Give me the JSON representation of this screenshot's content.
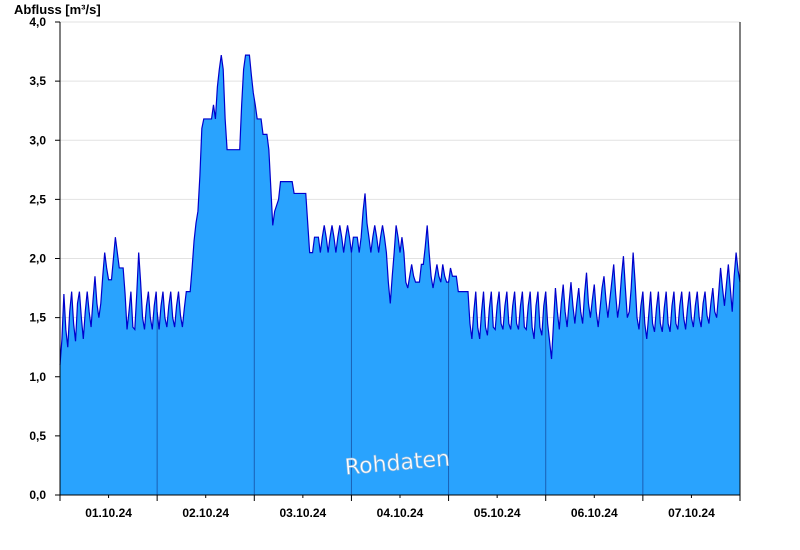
{
  "chart_data": {
    "type": "area",
    "ylabel": "Abfluss [m³/s]",
    "ylim": [
      0,
      4.0
    ],
    "yticks": [
      "0,0",
      "0,5",
      "1,0",
      "1,5",
      "2,0",
      "2,5",
      "3,0",
      "3,5",
      "4,0"
    ],
    "xticks": [
      "01.10.24",
      "02.10.24",
      "03.10.24",
      "04.10.24",
      "05.10.24",
      "06.10.24",
      "07.10.24"
    ],
    "xlim_days": [
      0,
      7
    ],
    "grid": "horizontal",
    "watermark": "Rohdaten",
    "colors": {
      "fill": "#29a3fe",
      "line": "#0000cc",
      "grid": "#e2e2e2",
      "axis": "#000000"
    },
    "series": [
      {
        "points": [
          [
            0.0,
            1.1
          ],
          [
            0.02,
            1.32
          ],
          [
            0.04,
            1.7
          ],
          [
            0.06,
            1.4
          ],
          [
            0.08,
            1.25
          ],
          [
            0.1,
            1.55
          ],
          [
            0.12,
            1.72
          ],
          [
            0.14,
            1.45
          ],
          [
            0.16,
            1.3
          ],
          [
            0.18,
            1.62
          ],
          [
            0.2,
            1.72
          ],
          [
            0.22,
            1.5
          ],
          [
            0.24,
            1.32
          ],
          [
            0.26,
            1.55
          ],
          [
            0.28,
            1.72
          ],
          [
            0.3,
            1.55
          ],
          [
            0.32,
            1.42
          ],
          [
            0.34,
            1.65
          ],
          [
            0.36,
            1.85
          ],
          [
            0.38,
            1.62
          ],
          [
            0.4,
            1.5
          ],
          [
            0.42,
            1.62
          ],
          [
            0.44,
            1.85
          ],
          [
            0.46,
            2.05
          ],
          [
            0.48,
            1.92
          ],
          [
            0.5,
            1.82
          ],
          [
            0.53,
            1.82
          ],
          [
            0.55,
            2.0
          ],
          [
            0.57,
            2.18
          ],
          [
            0.59,
            2.05
          ],
          [
            0.61,
            1.92
          ],
          [
            0.65,
            1.92
          ],
          [
            0.67,
            1.7
          ],
          [
            0.69,
            1.4
          ],
          [
            0.71,
            1.55
          ],
          [
            0.73,
            1.72
          ],
          [
            0.75,
            1.42
          ],
          [
            0.77,
            1.4
          ],
          [
            0.79,
            1.7
          ],
          [
            0.81,
            2.05
          ],
          [
            0.83,
            1.8
          ],
          [
            0.85,
            1.5
          ],
          [
            0.87,
            1.4
          ],
          [
            0.89,
            1.6
          ],
          [
            0.91,
            1.72
          ],
          [
            0.93,
            1.5
          ],
          [
            0.95,
            1.4
          ],
          [
            0.97,
            1.6
          ],
          [
            0.99,
            1.72
          ],
          [
            1.0,
            1.55
          ],
          [
            1.02,
            1.4
          ],
          [
            1.04,
            1.6
          ],
          [
            1.06,
            1.72
          ],
          [
            1.08,
            1.5
          ],
          [
            1.1,
            1.42
          ],
          [
            1.12,
            1.6
          ],
          [
            1.14,
            1.72
          ],
          [
            1.16,
            1.5
          ],
          [
            1.18,
            1.42
          ],
          [
            1.2,
            1.6
          ],
          [
            1.22,
            1.72
          ],
          [
            1.24,
            1.52
          ],
          [
            1.26,
            1.42
          ],
          [
            1.28,
            1.58
          ],
          [
            1.3,
            1.72
          ],
          [
            1.34,
            1.72
          ],
          [
            1.36,
            1.92
          ],
          [
            1.38,
            2.15
          ],
          [
            1.4,
            2.3
          ],
          [
            1.42,
            2.4
          ],
          [
            1.44,
            2.7
          ],
          [
            1.46,
            3.1
          ],
          [
            1.48,
            3.18
          ],
          [
            1.56,
            3.18
          ],
          [
            1.58,
            3.3
          ],
          [
            1.6,
            3.18
          ],
          [
            1.62,
            3.45
          ],
          [
            1.64,
            3.6
          ],
          [
            1.66,
            3.72
          ],
          [
            1.68,
            3.6
          ],
          [
            1.7,
            3.18
          ],
          [
            1.72,
            2.92
          ],
          [
            1.85,
            2.92
          ],
          [
            1.87,
            3.3
          ],
          [
            1.89,
            3.6
          ],
          [
            1.91,
            3.72
          ],
          [
            1.95,
            3.72
          ],
          [
            1.97,
            3.55
          ],
          [
            1.99,
            3.4
          ],
          [
            2.01,
            3.3
          ],
          [
            2.03,
            3.18
          ],
          [
            2.07,
            3.18
          ],
          [
            2.09,
            3.05
          ],
          [
            2.13,
            3.05
          ],
          [
            2.15,
            2.92
          ],
          [
            2.17,
            2.6
          ],
          [
            2.19,
            2.28
          ],
          [
            2.21,
            2.4
          ],
          [
            2.25,
            2.5
          ],
          [
            2.27,
            2.65
          ],
          [
            2.39,
            2.65
          ],
          [
            2.41,
            2.55
          ],
          [
            2.53,
            2.55
          ],
          [
            2.55,
            2.3
          ],
          [
            2.57,
            2.05
          ],
          [
            2.6,
            2.05
          ],
          [
            2.62,
            2.18
          ],
          [
            2.66,
            2.18
          ],
          [
            2.68,
            2.05
          ],
          [
            2.7,
            2.18
          ],
          [
            2.72,
            2.28
          ],
          [
            2.74,
            2.18
          ],
          [
            2.76,
            2.05
          ],
          [
            2.78,
            2.18
          ],
          [
            2.8,
            2.28
          ],
          [
            2.82,
            2.18
          ],
          [
            2.84,
            2.05
          ],
          [
            2.86,
            2.18
          ],
          [
            2.88,
            2.28
          ],
          [
            2.9,
            2.18
          ],
          [
            2.92,
            2.05
          ],
          [
            2.94,
            2.18
          ],
          [
            2.96,
            2.28
          ],
          [
            2.98,
            2.18
          ],
          [
            3.0,
            2.05
          ],
          [
            3.02,
            2.18
          ],
          [
            3.06,
            2.18
          ],
          [
            3.08,
            2.05
          ],
          [
            3.1,
            2.18
          ],
          [
            3.12,
            2.4
          ],
          [
            3.14,
            2.55
          ],
          [
            3.16,
            2.3
          ],
          [
            3.18,
            2.18
          ],
          [
            3.2,
            2.05
          ],
          [
            3.22,
            2.18
          ],
          [
            3.24,
            2.28
          ],
          [
            3.26,
            2.18
          ],
          [
            3.28,
            2.05
          ],
          [
            3.3,
            2.18
          ],
          [
            3.32,
            2.28
          ],
          [
            3.34,
            2.18
          ],
          [
            3.36,
            2.05
          ],
          [
            3.38,
            1.8
          ],
          [
            3.4,
            1.62
          ],
          [
            3.42,
            1.85
          ],
          [
            3.44,
            2.05
          ],
          [
            3.46,
            2.28
          ],
          [
            3.48,
            2.18
          ],
          [
            3.5,
            2.05
          ],
          [
            3.52,
            2.18
          ],
          [
            3.54,
            2.05
          ],
          [
            3.56,
            1.8
          ],
          [
            3.58,
            1.75
          ],
          [
            3.6,
            1.85
          ],
          [
            3.62,
            1.95
          ],
          [
            3.64,
            1.85
          ],
          [
            3.66,
            1.8
          ],
          [
            3.7,
            1.8
          ],
          [
            3.72,
            1.95
          ],
          [
            3.74,
            1.95
          ],
          [
            3.76,
            2.1
          ],
          [
            3.78,
            2.28
          ],
          [
            3.8,
            2.05
          ],
          [
            3.82,
            1.85
          ],
          [
            3.84,
            1.75
          ],
          [
            3.86,
            1.85
          ],
          [
            3.88,
            1.95
          ],
          [
            3.9,
            1.85
          ],
          [
            3.92,
            1.8
          ],
          [
            3.94,
            1.95
          ],
          [
            3.96,
            1.85
          ],
          [
            3.98,
            1.8
          ],
          [
            4.0,
            1.8
          ],
          [
            4.02,
            1.92
          ],
          [
            4.04,
            1.85
          ],
          [
            4.08,
            1.85
          ],
          [
            4.1,
            1.72
          ],
          [
            4.2,
            1.72
          ],
          [
            4.22,
            1.45
          ],
          [
            4.24,
            1.32
          ],
          [
            4.26,
            1.55
          ],
          [
            4.28,
            1.72
          ],
          [
            4.3,
            1.42
          ],
          [
            4.32,
            1.32
          ],
          [
            4.34,
            1.55
          ],
          [
            4.36,
            1.72
          ],
          [
            4.38,
            1.42
          ],
          [
            4.4,
            1.35
          ],
          [
            4.42,
            1.58
          ],
          [
            4.44,
            1.72
          ],
          [
            4.46,
            1.42
          ],
          [
            4.48,
            1.4
          ],
          [
            4.5,
            1.6
          ],
          [
            4.52,
            1.72
          ],
          [
            4.54,
            1.45
          ],
          [
            4.56,
            1.4
          ],
          [
            4.58,
            1.6
          ],
          [
            4.6,
            1.72
          ],
          [
            4.62,
            1.45
          ],
          [
            4.64,
            1.4
          ],
          [
            4.66,
            1.6
          ],
          [
            4.68,
            1.72
          ],
          [
            4.7,
            1.45
          ],
          [
            4.72,
            1.4
          ],
          [
            4.74,
            1.6
          ],
          [
            4.76,
            1.72
          ],
          [
            4.78,
            1.42
          ],
          [
            4.8,
            1.4
          ],
          [
            4.82,
            1.6
          ],
          [
            4.84,
            1.72
          ],
          [
            4.86,
            1.42
          ],
          [
            4.88,
            1.32
          ],
          [
            4.9,
            1.6
          ],
          [
            4.92,
            1.72
          ],
          [
            4.94,
            1.42
          ],
          [
            4.96,
            1.35
          ],
          [
            4.98,
            1.6
          ],
          [
            5.0,
            1.72
          ],
          [
            5.02,
            1.45
          ],
          [
            5.04,
            1.3
          ],
          [
            5.06,
            1.15
          ],
          [
            5.08,
            1.45
          ],
          [
            5.1,
            1.75
          ],
          [
            5.12,
            1.55
          ],
          [
            5.14,
            1.4
          ],
          [
            5.16,
            1.62
          ],
          [
            5.18,
            1.78
          ],
          [
            5.2,
            1.55
          ],
          [
            5.22,
            1.42
          ],
          [
            5.24,
            1.62
          ],
          [
            5.26,
            1.8
          ],
          [
            5.28,
            1.6
          ],
          [
            5.3,
            1.45
          ],
          [
            5.32,
            1.62
          ],
          [
            5.34,
            1.75
          ],
          [
            5.36,
            1.55
          ],
          [
            5.38,
            1.45
          ],
          [
            5.4,
            1.7
          ],
          [
            5.42,
            1.88
          ],
          [
            5.44,
            1.62
          ],
          [
            5.46,
            1.5
          ],
          [
            5.48,
            1.65
          ],
          [
            5.5,
            1.78
          ],
          [
            5.52,
            1.55
          ],
          [
            5.54,
            1.42
          ],
          [
            5.56,
            1.58
          ],
          [
            5.58,
            1.75
          ],
          [
            5.6,
            1.85
          ],
          [
            5.62,
            1.65
          ],
          [
            5.64,
            1.5
          ],
          [
            5.66,
            1.65
          ],
          [
            5.68,
            1.8
          ],
          [
            5.7,
            1.95
          ],
          [
            5.72,
            1.7
          ],
          [
            5.74,
            1.5
          ],
          [
            5.76,
            1.62
          ],
          [
            5.78,
            1.85
          ],
          [
            5.8,
            2.02
          ],
          [
            5.82,
            1.75
          ],
          [
            5.84,
            1.5
          ],
          [
            5.86,
            1.55
          ],
          [
            5.88,
            1.75
          ],
          [
            5.9,
            2.05
          ],
          [
            5.92,
            1.8
          ],
          [
            5.94,
            1.5
          ],
          [
            5.96,
            1.4
          ],
          [
            5.98,
            1.6
          ],
          [
            6.0,
            1.72
          ],
          [
            6.02,
            1.45
          ],
          [
            6.04,
            1.32
          ],
          [
            6.06,
            1.52
          ],
          [
            6.08,
            1.72
          ],
          [
            6.1,
            1.45
          ],
          [
            6.12,
            1.38
          ],
          [
            6.14,
            1.58
          ],
          [
            6.16,
            1.72
          ],
          [
            6.18,
            1.45
          ],
          [
            6.2,
            1.38
          ],
          [
            6.22,
            1.58
          ],
          [
            6.24,
            1.72
          ],
          [
            6.26,
            1.45
          ],
          [
            6.28,
            1.38
          ],
          [
            6.3,
            1.6
          ],
          [
            6.32,
            1.72
          ],
          [
            6.34,
            1.45
          ],
          [
            6.36,
            1.4
          ],
          [
            6.38,
            1.6
          ],
          [
            6.4,
            1.72
          ],
          [
            6.42,
            1.5
          ],
          [
            6.44,
            1.4
          ],
          [
            6.46,
            1.58
          ],
          [
            6.48,
            1.72
          ],
          [
            6.5,
            1.5
          ],
          [
            6.52,
            1.42
          ],
          [
            6.54,
            1.6
          ],
          [
            6.56,
            1.72
          ],
          [
            6.58,
            1.5
          ],
          [
            6.6,
            1.42
          ],
          [
            6.62,
            1.62
          ],
          [
            6.64,
            1.72
          ],
          [
            6.66,
            1.52
          ],
          [
            6.68,
            1.45
          ],
          [
            6.7,
            1.62
          ],
          [
            6.72,
            1.75
          ],
          [
            6.74,
            1.55
          ],
          [
            6.76,
            1.5
          ],
          [
            6.78,
            1.7
          ],
          [
            6.8,
            1.92
          ],
          [
            6.82,
            1.75
          ],
          [
            6.84,
            1.6
          ],
          [
            6.86,
            1.78
          ],
          [
            6.88,
            1.95
          ],
          [
            6.9,
            1.75
          ],
          [
            6.92,
            1.55
          ],
          [
            6.94,
            1.85
          ],
          [
            6.96,
            2.05
          ],
          [
            6.98,
            1.9
          ],
          [
            7.0,
            1.8
          ]
        ]
      }
    ]
  }
}
